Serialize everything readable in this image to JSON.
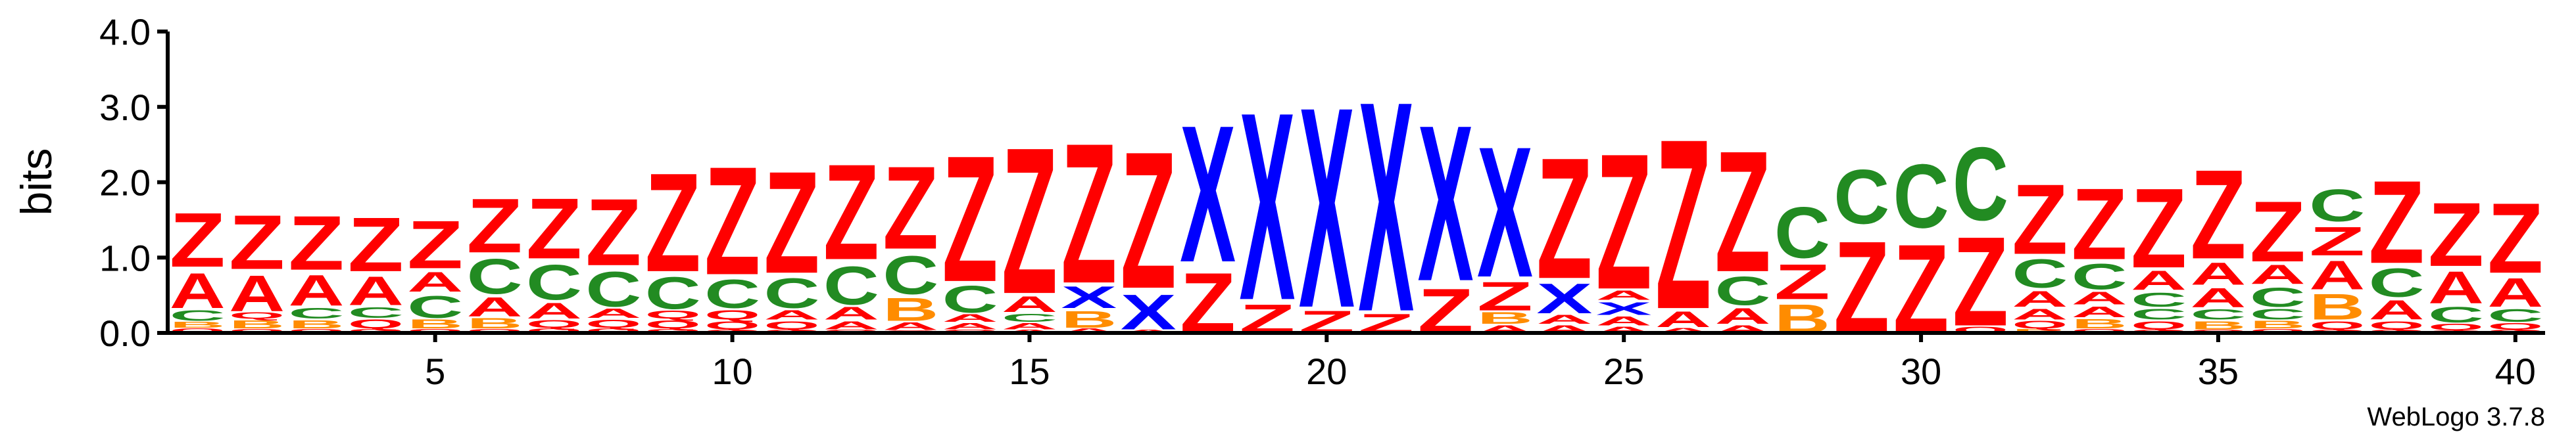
{
  "chart_data": {
    "type": "sequence-logo",
    "ylabel": "bits",
    "ylim": [
      0,
      4.0
    ],
    "yticks": [
      {
        "value": 0,
        "label": "0.0"
      },
      {
        "value": 1,
        "label": "1.0"
      },
      {
        "value": 2,
        "label": "2.0"
      },
      {
        "value": 3,
        "label": "3.0"
      },
      {
        "value": 4,
        "label": "4.0"
      }
    ],
    "xlim": [
      0.5,
      40.5
    ],
    "xticks": [
      {
        "value": 5,
        "label": "5"
      },
      {
        "value": 10,
        "label": "10"
      },
      {
        "value": 15,
        "label": "15"
      },
      {
        "value": 20,
        "label": "20"
      },
      {
        "value": 25,
        "label": "25"
      },
      {
        "value": 30,
        "label": "30"
      },
      {
        "value": 35,
        "label": "35"
      },
      {
        "value": 40,
        "label": "40"
      }
    ],
    "colors": {
      "Z": "#ff0000",
      "A": "#ff0000",
      "X": "#0000ff",
      "C": "#228b22",
      "B": "#ff8c00",
      "Q": "#ff0000"
    },
    "columns": [
      {
        "position": 1,
        "stack": [
          [
            "Q",
            0.07
          ],
          [
            "B",
            0.09
          ],
          [
            "C",
            0.17
          ],
          [
            "A",
            0.55
          ],
          [
            "Z",
            0.85
          ]
        ]
      },
      {
        "position": 2,
        "stack": [
          [
            "Q",
            0.06
          ],
          [
            "B",
            0.13
          ],
          [
            "Q",
            0.1
          ],
          [
            "A",
            0.56
          ],
          [
            "Z",
            0.85
          ]
        ]
      },
      {
        "position": 3,
        "stack": [
          [
            "Q",
            0.06
          ],
          [
            "B",
            0.13
          ],
          [
            "C",
            0.17
          ],
          [
            "A",
            0.48
          ],
          [
            "Z",
            0.85
          ]
        ]
      },
      {
        "position": 4,
        "stack": [
          [
            "Q",
            0.06
          ],
          [
            "Q",
            0.14
          ],
          [
            "C",
            0.17
          ],
          [
            "A",
            0.45
          ],
          [
            "Z",
            0.85
          ]
        ]
      },
      {
        "position": 5,
        "stack": [
          [
            "Q",
            0.06
          ],
          [
            "B",
            0.14
          ],
          [
            "C",
            0.35
          ],
          [
            "A",
            0.31
          ],
          [
            "Z",
            0.75
          ]
        ]
      },
      {
        "position": 6,
        "stack": [
          [
            "Q",
            0.06
          ],
          [
            "B",
            0.16
          ],
          [
            "A",
            0.3
          ],
          [
            "C",
            0.55
          ],
          [
            "Z",
            0.85
          ]
        ]
      },
      {
        "position": 7,
        "stack": [
          [
            "Q",
            0.07
          ],
          [
            "Q",
            0.12
          ],
          [
            "A",
            0.25
          ],
          [
            "C",
            0.55
          ],
          [
            "Z",
            0.95
          ]
        ]
      },
      {
        "position": 8,
        "stack": [
          [
            "Q",
            0.07
          ],
          [
            "Q",
            0.13
          ],
          [
            "A",
            0.15
          ],
          [
            "C",
            0.55
          ],
          [
            "Z",
            1.05
          ]
        ]
      },
      {
        "position": 9,
        "stack": [
          [
            "Q",
            0.06
          ],
          [
            "Q",
            0.13
          ],
          [
            "Q",
            0.13
          ],
          [
            "C",
            0.5
          ],
          [
            "Z",
            1.55
          ]
        ]
      },
      {
        "position": 10,
        "stack": [
          [
            "Q",
            0.05
          ],
          [
            "Q",
            0.13
          ],
          [
            "Q",
            0.15
          ],
          [
            "C",
            0.45
          ],
          [
            "Z",
            1.7
          ]
        ]
      },
      {
        "position": 11,
        "stack": [
          [
            "Q",
            0.05
          ],
          [
            "Q",
            0.13
          ],
          [
            "A",
            0.15
          ],
          [
            "C",
            0.47
          ],
          [
            "Z",
            1.6
          ]
        ]
      },
      {
        "position": 12,
        "stack": [
          [
            "Q",
            0.05
          ],
          [
            "A",
            0.13
          ],
          [
            "A",
            0.2
          ],
          [
            "C",
            0.6
          ],
          [
            "Z",
            1.5
          ]
        ]
      },
      {
        "position": 13,
        "stack": [
          [
            "Q",
            0.04
          ],
          [
            "A",
            0.12
          ],
          [
            "B",
            0.36
          ],
          [
            "C",
            0.6
          ],
          [
            "Z",
            1.3
          ]
        ]
      },
      {
        "position": 14,
        "stack": [
          [
            "Q",
            0.05
          ],
          [
            "A",
            0.1
          ],
          [
            "A",
            0.12
          ],
          [
            "C",
            0.42
          ],
          [
            "Z",
            1.98
          ]
        ]
      },
      {
        "position": 15,
        "stack": [
          [
            "A",
            0.05
          ],
          [
            "A",
            0.1
          ],
          [
            "C",
            0.13
          ],
          [
            "A",
            0.25
          ],
          [
            "Z",
            2.3
          ]
        ]
      },
      {
        "position": 16,
        "stack": [
          [
            "A",
            0.07
          ],
          [
            "B",
            0.26
          ],
          [
            "X",
            0.34
          ],
          [
            "Z",
            2.2
          ]
        ]
      },
      {
        "position": 17,
        "stack": [
          [
            "A",
            0.05
          ],
          [
            "X",
            0.55
          ],
          [
            "Z",
            2.15
          ]
        ]
      },
      {
        "position": 18,
        "stack": [
          [
            "Z",
            0.95
          ],
          [
            "X",
            2.15
          ]
        ]
      },
      {
        "position": 19,
        "stack": [
          [
            "Z",
            0.45
          ],
          [
            "X",
            2.95
          ]
        ]
      },
      {
        "position": 20,
        "stack": [
          [
            "Z",
            0.35
          ],
          [
            "X",
            3.15
          ]
        ]
      },
      {
        "position": 21,
        "stack": [
          [
            "Z",
            0.3
          ],
          [
            "X",
            3.3
          ]
        ]
      },
      {
        "position": 22,
        "stack": [
          [
            "Z",
            0.7
          ],
          [
            "X",
            2.45
          ]
        ]
      },
      {
        "position": 23,
        "stack": [
          [
            "A",
            0.12
          ],
          [
            "B",
            0.18
          ],
          [
            "Z",
            0.45
          ],
          [
            "X",
            2.05
          ]
        ]
      },
      {
        "position": 24,
        "stack": [
          [
            "A",
            0.12
          ],
          [
            "A",
            0.14
          ],
          [
            "X",
            0.47
          ],
          [
            "Z",
            1.9
          ]
        ]
      },
      {
        "position": 25,
        "stack": [
          [
            "A",
            0.1
          ],
          [
            "A",
            0.14
          ],
          [
            "X",
            0.2
          ],
          [
            "A",
            0.15
          ],
          [
            "Z",
            2.13
          ]
        ]
      },
      {
        "position": 26,
        "stack": [
          [
            "A",
            0.08
          ],
          [
            "A",
            0.25
          ],
          [
            "Z",
            2.67
          ]
        ]
      },
      {
        "position": 27,
        "stack": [
          [
            "A",
            0.12
          ],
          [
            "A",
            0.25
          ],
          [
            "C",
            0.45
          ],
          [
            "Z",
            1.9
          ]
        ]
      },
      {
        "position": 28,
        "stack": [
          [
            "B",
            0.45
          ],
          [
            "Z",
            0.55
          ],
          [
            "C",
            0.8
          ]
        ]
      },
      {
        "position": 29,
        "stack": [
          [
            "Z",
            1.45
          ],
          [
            "C",
            0.85
          ]
        ]
      },
      {
        "position": 30,
        "stack": [
          [
            "Z",
            1.4
          ],
          [
            "C",
            1.0
          ]
        ]
      },
      {
        "position": 31,
        "stack": [
          [
            "Q",
            0.1
          ],
          [
            "Z",
            1.4
          ],
          [
            "C",
            1.15
          ]
        ]
      },
      {
        "position": 32,
        "stack": [
          [
            "B",
            0.06
          ],
          [
            "Q",
            0.12
          ],
          [
            "A",
            0.17
          ],
          [
            "A",
            0.25
          ],
          [
            "C",
            0.45
          ],
          [
            "Z",
            1.1
          ]
        ]
      },
      {
        "position": 33,
        "stack": [
          [
            "Q",
            0.06
          ],
          [
            "B",
            0.15
          ],
          [
            "A",
            0.17
          ],
          [
            "A",
            0.2
          ],
          [
            "C",
            0.4
          ],
          [
            "Z",
            1.12
          ]
        ]
      },
      {
        "position": 34,
        "stack": [
          [
            "Q",
            0.05
          ],
          [
            "Q",
            0.13
          ],
          [
            "C",
            0.17
          ],
          [
            "C",
            0.22
          ],
          [
            "A",
            0.3
          ],
          [
            "Z",
            1.25
          ]
        ]
      },
      {
        "position": 35,
        "stack": [
          [
            "Q",
            0.05
          ],
          [
            "B",
            0.13
          ],
          [
            "C",
            0.16
          ],
          [
            "A",
            0.3
          ],
          [
            "A",
            0.35
          ],
          [
            "Z",
            1.4
          ]
        ]
      },
      {
        "position": 36,
        "stack": [
          [
            "Q",
            0.06
          ],
          [
            "B",
            0.12
          ],
          [
            "C",
            0.17
          ],
          [
            "C",
            0.3
          ],
          [
            "A",
            0.3
          ],
          [
            "Z",
            0.95
          ]
        ]
      },
      {
        "position": 37,
        "stack": [
          [
            "Q",
            0.05
          ],
          [
            "Q",
            0.13
          ],
          [
            "B",
            0.4
          ],
          [
            "A",
            0.45
          ],
          [
            "Z",
            0.45
          ],
          [
            "C",
            0.5
          ]
        ]
      },
      {
        "position": 38,
        "stack": [
          [
            "Q",
            0.05
          ],
          [
            "Q",
            0.13
          ],
          [
            "A",
            0.3
          ],
          [
            "C",
            0.45
          ],
          [
            "Z",
            1.3
          ]
        ]
      },
      {
        "position": 39,
        "stack": [
          [
            "Q",
            0.04
          ],
          [
            "Q",
            0.1
          ],
          [
            "C",
            0.25
          ],
          [
            "A",
            0.5
          ],
          [
            "Z",
            1.0
          ]
        ]
      },
      {
        "position": 40,
        "stack": [
          [
            "Q",
            0.05
          ],
          [
            "Q",
            0.1
          ],
          [
            "C",
            0.2
          ],
          [
            "A",
            0.45
          ],
          [
            "Z",
            1.1
          ]
        ]
      }
    ]
  },
  "footer": {
    "version": "WebLogo 3.7.8"
  }
}
